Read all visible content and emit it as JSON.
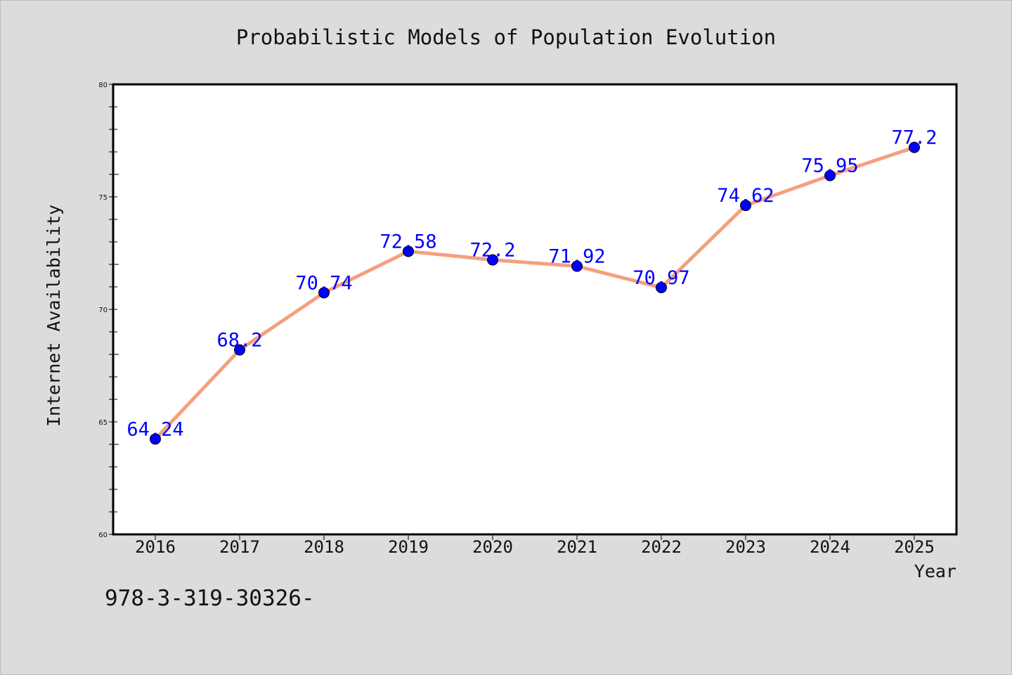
{
  "footer": {
    "text": "978-3-319-30326-"
  },
  "colors": {
    "background": "#dcdcdc",
    "plot_bg": "#ffffff",
    "line": "#f4a07e",
    "marker": "#0000ff",
    "label": "#0000ff"
  },
  "chart_data": {
    "type": "line",
    "title": "Probabilistic Models of Population Evolution",
    "xlabel": "Year",
    "ylabel": "Internet Availability",
    "categories": [
      "2016",
      "2017",
      "2018",
      "2019",
      "2020",
      "2021",
      "2022",
      "2023",
      "2024",
      "2025"
    ],
    "series": [
      {
        "values": [
          64.24,
          68.2,
          70.74,
          72.58,
          72.2,
          71.92,
          70.97,
          74.62,
          75.95,
          77.2
        ]
      }
    ],
    "data_labels": [
      "64.24",
      "68.2",
      "70.74",
      "72.58",
      "72.2",
      "71.92",
      "70.97",
      "74.62",
      "75.95",
      "77.2"
    ],
    "ylim": [
      60,
      80
    ],
    "yticks": [
      "60",
      "65",
      "70",
      "75",
      "80"
    ],
    "grid": false,
    "legend": "none"
  }
}
